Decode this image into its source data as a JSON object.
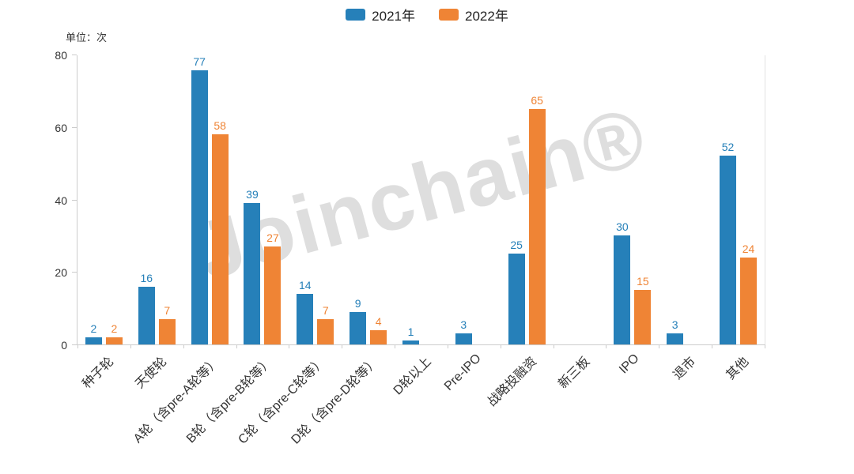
{
  "unit_label": "单位：次",
  "watermark": "Joinchain®",
  "chart_data": {
    "type": "bar",
    "title": "",
    "xlabel": "",
    "ylabel": "次",
    "unit_label": "单位：次",
    "watermark": "Joinchain®",
    "legend_position": "top",
    "grid": false,
    "ylim": [
      0,
      80
    ],
    "yticks": [
      0,
      20,
      40,
      60,
      80
    ],
    "categories": [
      "种子轮",
      "天使轮",
      "A轮（含pre-A轮等）",
      "B轮（含pre-B轮等）",
      "C轮（含pre-C轮等）",
      "D轮（含pre-D轮等）",
      "D轮以上",
      "Pre-IPO",
      "战略投融资",
      "新三板",
      "IPO",
      "退市",
      "其他"
    ],
    "series": [
      {
        "name": "2021年",
        "color": "#2680b9",
        "values": [
          2,
          16,
          77,
          39,
          14,
          9,
          1,
          3,
          25,
          0,
          30,
          3,
          52
        ]
      },
      {
        "name": "2022年",
        "color": "#ef8435",
        "values": [
          2,
          7,
          58,
          27,
          7,
          4,
          0,
          0,
          65,
          0,
          15,
          0,
          24
        ]
      }
    ]
  }
}
